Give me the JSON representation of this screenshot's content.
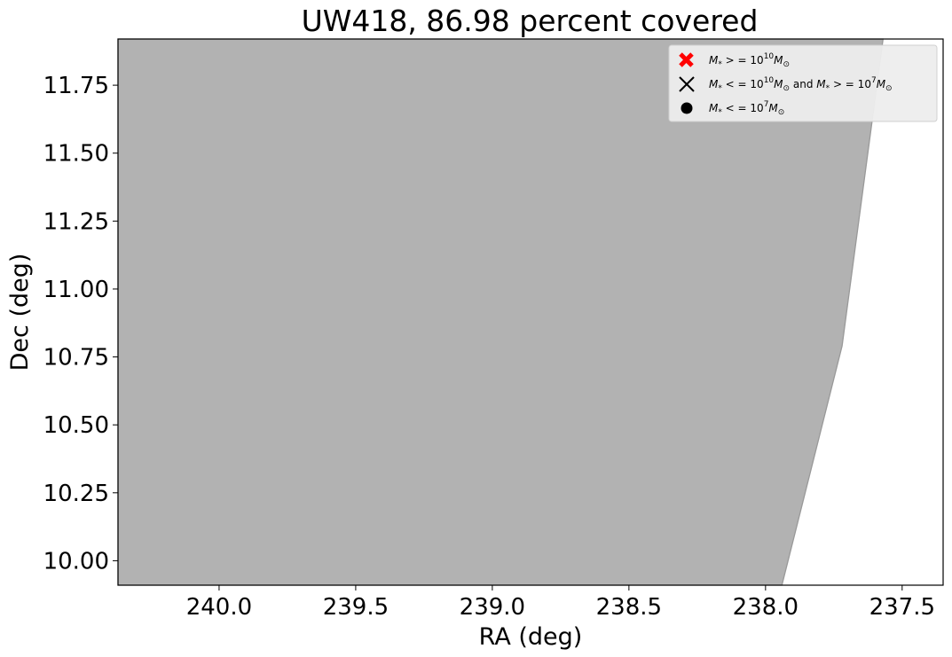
{
  "chart_data": {
    "type": "area",
    "title": "UW418, 86.98 percent covered",
    "xlabel": "RA (deg)",
    "ylabel": "Dec (deg)",
    "xlim": [
      240.37,
      237.35
    ],
    "ylim": [
      9.91,
      11.92
    ],
    "x_inverted": true,
    "x_ticks": [
      240.0,
      239.5,
      239.0,
      238.5,
      238.0,
      237.5
    ],
    "x_tick_labels": [
      "240.0",
      "239.5",
      "239.0",
      "238.5",
      "238.0",
      "237.5"
    ],
    "y_ticks": [
      10.0,
      10.25,
      10.5,
      10.75,
      11.0,
      11.25,
      11.5,
      11.75
    ],
    "y_tick_labels": [
      "10.00",
      "10.25",
      "10.50",
      "10.75",
      "11.00",
      "11.25",
      "11.50",
      "11.75"
    ],
    "grid": false,
    "coverage_region": {
      "fill_color": "#b2b2b2",
      "edge_color": "#999999",
      "boundary": [
        {
          "x": 240.37,
          "y": 9.91
        },
        {
          "x": 237.94,
          "y": 9.91
        },
        {
          "x": 237.72,
          "y": 10.79
        },
        {
          "x": 237.57,
          "y": 11.92
        },
        {
          "x": 240.37,
          "y": 11.92
        }
      ]
    },
    "legend": {
      "placement": "upper right",
      "entries": [
        {
          "marker": "bold-x",
          "color": "#ff0000",
          "label": "$M_{*}>=10^{10}M_\\odot$"
        },
        {
          "marker": "x",
          "color": "#000000",
          "label": "$M_{*}<=10^{10}M_\\odot$ and $M_{*}>=10^{7}M_\\odot$"
        },
        {
          "marker": "dot",
          "color": "#000000",
          "label": "$M_{*}<=10^{7}M_\\odot$"
        }
      ]
    }
  }
}
